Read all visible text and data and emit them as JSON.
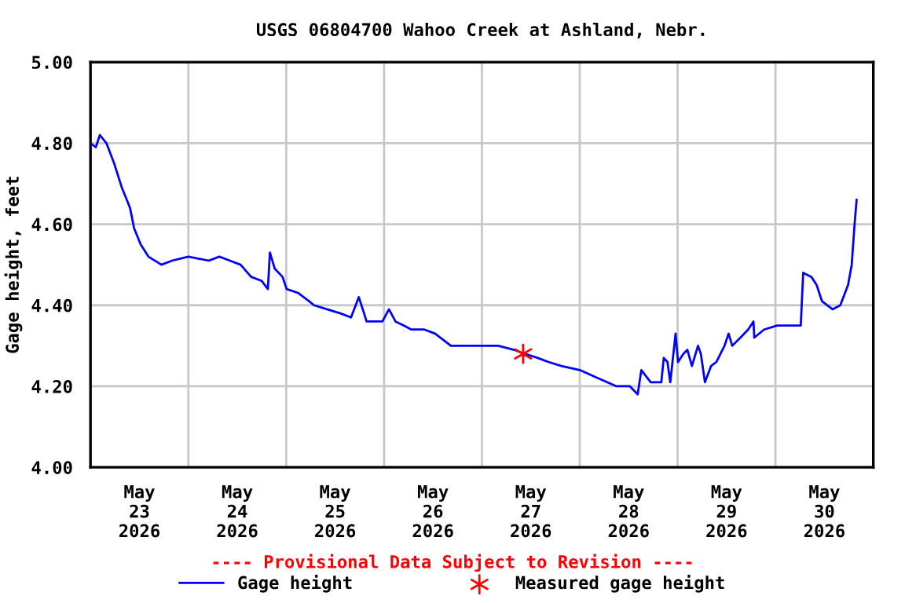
{
  "chart_data": {
    "type": "line",
    "title": "USGS 06804700 Wahoo Creek at Ashland, Nebr.",
    "ylabel": "Gage height, feet",
    "annotations": [
      "---- Provisional Data Subject to Revision ----"
    ],
    "xlim": [
      "2026-05-23T00:00",
      "2026-05-31T00:00"
    ],
    "xticks": [
      {
        "value": "2026-05-23T12:00",
        "label": "May\n23\n2026"
      },
      {
        "value": "2026-05-24T12:00",
        "label": "May\n24\n2026"
      },
      {
        "value": "2026-05-25T12:00",
        "label": "May\n25\n2026"
      },
      {
        "value": "2026-05-26T12:00",
        "label": "May\n26\n2026"
      },
      {
        "value": "2026-05-27T12:00",
        "label": "May\n27\n2026"
      },
      {
        "value": "2026-05-28T12:00",
        "label": "May\n28\n2026"
      },
      {
        "value": "2026-05-29T12:00",
        "label": "May\n29\n2026"
      },
      {
        "value": "2026-05-30T12:00",
        "label": "May\n30\n2026"
      },
      {
        "value": "2026-05-24T00:00",
        "label": null
      },
      {
        "value": "2026-05-25T00:00",
        "label": null
      },
      {
        "value": "2026-05-26T00:00",
        "label": null
      },
      {
        "value": "2026-05-27T00:00",
        "label": null
      },
      {
        "value": "2026-05-28T00:00",
        "label": null
      },
      {
        "value": "2026-05-29T00:00",
        "label": null
      },
      {
        "value": "2026-05-30T00:00",
        "label": null
      }
    ],
    "ylim": [
      4.0,
      5.0
    ],
    "yticks": [
      {
        "value": 4.0,
        "label": "4.00"
      },
      {
        "value": 4.2,
        "label": "4.20"
      },
      {
        "value": 4.4,
        "label": "4.40"
      },
      {
        "value": 4.6,
        "label": "4.60"
      },
      {
        "value": 4.8,
        "label": "4.80"
      },
      {
        "value": 5.0,
        "label": "5.00"
      }
    ],
    "grid": true,
    "legend": "bottom",
    "series": [
      {
        "name": "Gage height",
        "color": "#0000ff",
        "marker": "none",
        "line_style": "solid",
        "x": [
          "2026-05-23T00:00",
          "2026-05-23T01:18",
          "2026-05-23T02:18",
          "2026-05-23T03:54",
          "2026-05-23T05:48",
          "2026-05-23T07:42",
          "2026-05-23T09:42",
          "2026-05-23T10:42",
          "2026-05-23T12:18",
          "2026-05-23T14:12",
          "2026-05-23T17:24",
          "2026-05-23T20:00",
          "2026-05-24T00:00",
          "2026-05-24T05:00",
          "2026-05-24T07:36",
          "2026-05-24T10:12",
          "2026-05-24T12:48",
          "2026-05-24T15:24",
          "2026-05-24T18:00",
          "2026-05-24T19:30",
          "2026-05-24T20:00",
          "2026-05-24T21:12",
          "2026-05-24T23:06",
          "2026-05-25T00:06",
          "2026-05-25T03:00",
          "2026-05-25T05:36",
          "2026-05-25T06:48",
          "2026-05-25T10:00",
          "2026-05-25T13:18",
          "2026-05-25T15:54",
          "2026-05-25T17:48",
          "2026-05-25T19:06",
          "2026-05-25T19:42",
          "2026-05-25T23:36",
          "2026-05-26T01:12",
          "2026-05-26T02:48",
          "2026-05-26T04:48",
          "2026-05-26T06:42",
          "2026-05-26T09:54",
          "2026-05-26T12:30",
          "2026-05-26T16:24",
          "2026-05-26T20:54",
          "2026-05-27T04:00",
          "2026-05-27T07:54",
          "2026-05-27T10:30",
          "2026-05-27T13:42",
          "2026-05-27T16:18",
          "2026-05-27T19:30",
          "2026-05-28T00:00",
          "2026-05-28T04:30",
          "2026-05-28T09:00",
          "2026-05-28T12:18",
          "2026-05-28T14:12",
          "2026-05-28T15:06",
          "2026-05-28T17:24",
          "2026-05-28T20:00",
          "2026-05-28T20:36",
          "2026-05-28T21:30",
          "2026-05-28T22:12",
          "2026-05-28T23:30",
          "2026-05-29T00:06",
          "2026-05-29T01:24",
          "2026-05-29T02:24",
          "2026-05-29T03:30",
          "2026-05-29T05:00",
          "2026-05-29T05:42",
          "2026-05-29T06:42",
          "2026-05-29T08:12",
          "2026-05-29T09:30",
          "2026-05-29T11:30",
          "2026-05-29T12:30",
          "2026-05-29T13:24",
          "2026-05-29T15:24",
          "2026-05-29T17:18",
          "2026-05-29T18:36",
          "2026-05-29T18:48",
          "2026-05-29T21:12",
          "2026-05-30T00:24",
          "2026-05-30T06:12",
          "2026-05-30T06:48",
          "2026-05-30T08:48",
          "2026-05-30T10:06",
          "2026-05-30T11:24",
          "2026-05-30T14:00",
          "2026-05-30T15:54",
          "2026-05-30T17:48",
          "2026-05-30T18:42",
          "2026-05-30T19:24",
          "2026-05-30T19:54"
        ],
        "values": [
          4.8,
          4.79,
          4.82,
          4.8,
          4.75,
          4.69,
          4.64,
          4.59,
          4.55,
          4.52,
          4.5,
          4.51,
          4.52,
          4.51,
          4.52,
          4.51,
          4.5,
          4.47,
          4.46,
          4.44,
          4.53,
          4.49,
          4.47,
          4.44,
          4.43,
          4.41,
          4.4,
          4.39,
          4.38,
          4.37,
          4.42,
          4.38,
          4.36,
          4.36,
          4.39,
          4.36,
          4.35,
          4.34,
          4.34,
          4.33,
          4.3,
          4.3,
          4.3,
          4.29,
          4.28,
          4.27,
          4.26,
          4.25,
          4.24,
          4.22,
          4.2,
          4.2,
          4.18,
          4.24,
          4.21,
          4.21,
          4.27,
          4.26,
          4.21,
          4.33,
          4.26,
          4.28,
          4.29,
          4.25,
          4.3,
          4.28,
          4.21,
          4.25,
          4.26,
          4.3,
          4.33,
          4.3,
          4.32,
          4.34,
          4.36,
          4.32,
          4.34,
          4.35,
          4.35,
          4.48,
          4.47,
          4.45,
          4.41,
          4.39,
          4.4,
          4.45,
          4.5,
          4.6,
          4.66
        ]
      },
      {
        "name": "Measured gage height",
        "type": "scatter",
        "color": "#ff0000",
        "marker": "cross",
        "x": [
          "2026-05-27T10:06"
        ],
        "values": [
          4.28
        ]
      }
    ]
  }
}
